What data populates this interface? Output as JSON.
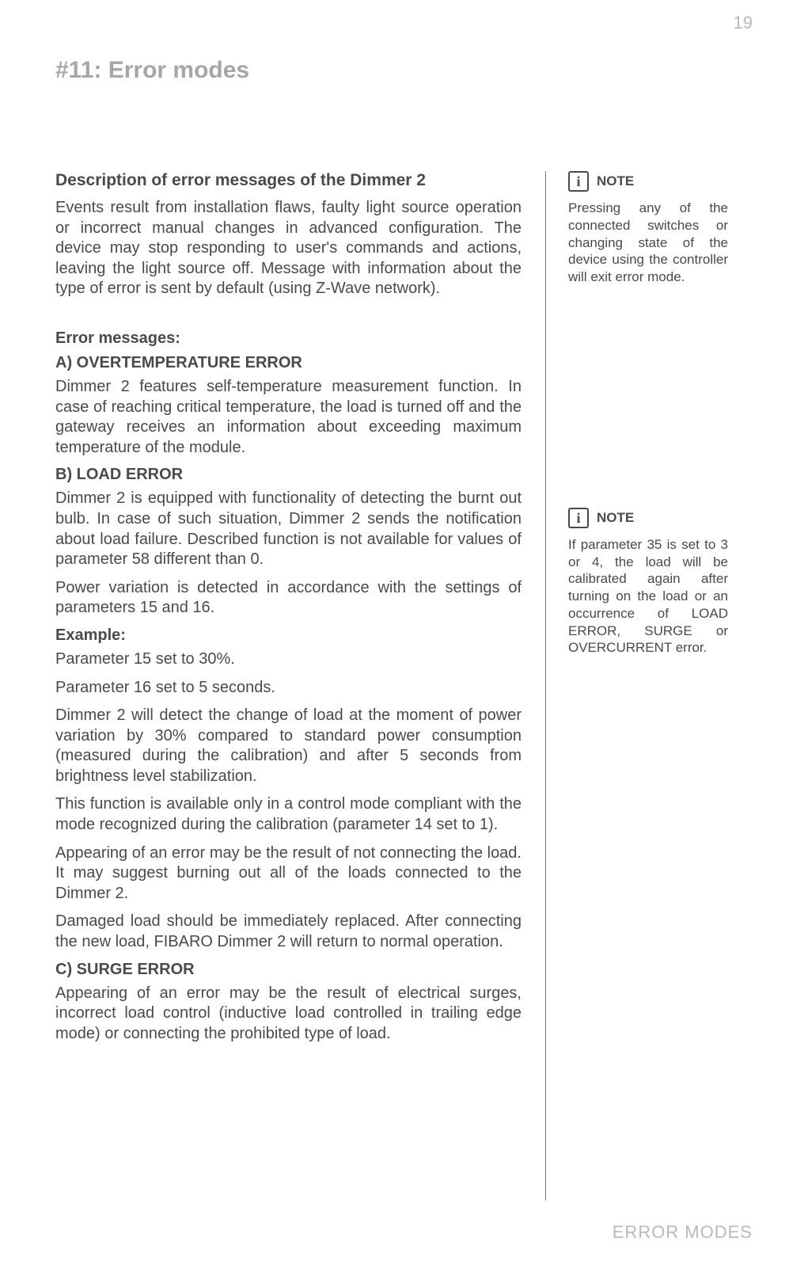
{
  "page_number": "19",
  "section_title": "#11: Error modes",
  "footer_label": "ERROR MODES",
  "main": {
    "desc_heading": "Description of error messages of the Dimmer 2",
    "desc_para": "Events result from installation flaws, faulty light source operation or incorrect manual changes in advanced configuration. The device may stop responding to user's commands and actions, leaving the light source off. Message with information about the type of error is sent by default (using Z-Wave network).",
    "error_messages_heading": "Error messages:",
    "a_head": "A)  OVERTEMPERATURE ERROR",
    "a_para": "Dimmer 2 features self-temperature measurement function. In case of reaching critical temperature, the load is turned off and the gateway receives an information about exceeding maximum temperature of the module.",
    "b_head": "B)  LOAD ERROR",
    "b_para1": "Dimmer 2 is equipped with functionality of detecting the burnt out bulb. In case of such situation, Dimmer 2 sends the notification about load failure. Described function is not available for values of parameter 58 different than 0.",
    "b_para2": "Power variation is detected in accordance with the settings of parameters 15 and 16.",
    "example_head": "Example:",
    "ex_p1": "Parameter 15 set to 30%.",
    "ex_p2": "Parameter 16 set to 5 seconds.",
    "ex_p3": "Dimmer 2 will detect the change of load at the moment of power variation by 30% compared to standard power consumption (measured during the calibration) and after 5 seconds from brightness level stabilization.",
    "ex_p4": "This function is available only in a control mode compliant with the mode recognized during the calibration (parameter 14 set to 1).",
    "ex_p5": "Appearing of an error may be the result of not connecting the load. It may suggest burning out all of the loads connected to the Dimmer 2.",
    "ex_p6": "Damaged load should be immediately replaced. After connecting the new load, FIBARO Dimmer 2 will return to normal operation.",
    "c_head": "C)  SURGE ERROR",
    "c_para": "Appearing of an error may be the result of electrical surges, incorrect load control (inductive load controlled in trailing edge mode) or connecting the prohibited type of load."
  },
  "notes": [
    {
      "label": "NOTE",
      "icon_letter": "i",
      "text": "Pressing any of the connected switches or changing state of the device using the controller will exit error mode."
    },
    {
      "label": "NOTE",
      "icon_letter": "i",
      "text": "If parameter 35 is set to 3 or 4, the load will be calibrated again after turning on the load or an occurrence of LOAD ERROR, SURGE or OVERCURRENT error."
    }
  ]
}
